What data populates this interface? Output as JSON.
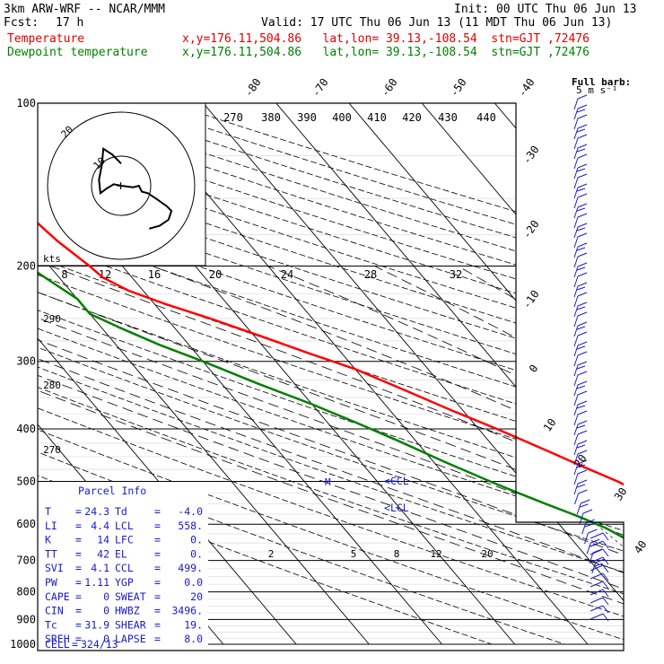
{
  "header": {
    "model": "3km ARW-WRF -- NCAR/MMM",
    "init": "Init: 00 UTC Thu 06 Jun 13",
    "fcst_label": "Fcst:",
    "fcst_value": "17 h",
    "valid": "Valid: 17 UTC Thu 06 Jun 13 (11 MDT Thu 06 Jun 13)",
    "temperature_label": "Temperature",
    "dewpoint_label": "Dewpoint temperature",
    "temperature_loc": "x,y=176.11,504.86   lat,lon= 39.13,-108.54  stn=GJT ,72476",
    "dewpoint_loc": "x,y=176.11,504.86   lat,lon= 39.13,-108.54  stn=GJT ,72476"
  },
  "colors": {
    "temperature": "#ff0000",
    "dewpoint": "#008000",
    "hodograph": "#000000",
    "wind_barbs": "#1a1acc",
    "parcel_info": "#1a1acc",
    "grid": "#000000"
  },
  "chart_data": {
    "type": "line",
    "title": "",
    "xlabel": "",
    "ylabel": "",
    "pressure_levels": [
      "100",
      "200",
      "300",
      "400",
      "500",
      "600",
      "700",
      "800",
      "900",
      "1000"
    ],
    "isotherm_labels": [
      "-80",
      "-70",
      "-60",
      "-50",
      "-40",
      "-30",
      "-20",
      "-10",
      "0",
      "10",
      "20",
      "30",
      "40"
    ],
    "theta_labels": [
      "270",
      "380",
      "390",
      "400",
      "410",
      "420",
      "430",
      "440"
    ],
    "dry_adiabat_labels": [
      "290",
      "280",
      "270"
    ],
    "wind_scale_labels": [
      "8",
      "12",
      "16",
      "20",
      "24",
      "28",
      "32"
    ],
    "wind_scale_unit": "kts",
    "mixing_ratio_labels": [
      "2",
      "5",
      "8",
      "12",
      "20"
    ],
    "barb_legend_line1": "Full barb:",
    "barb_legend_line2": "5 m s⁻¹",
    "markers": {
      "ccl": "CCL",
      "lcl": "LCL"
    },
    "series": [
      {
        "name": "Temperature",
        "color": "#ff0000",
        "points": [
          [
            850,
            24.3
          ],
          [
            830,
            21.5
          ],
          [
            800,
            19.0
          ],
          [
            770,
            16.0
          ],
          [
            740,
            13.5
          ],
          [
            700,
            10.0
          ],
          [
            670,
            7.0
          ],
          [
            640,
            4.5
          ],
          [
            600,
            0.5
          ],
          [
            560,
            -2.5
          ],
          [
            520,
            -5.5
          ],
          [
            500,
            -7.0
          ],
          [
            470,
            -10.0
          ],
          [
            440,
            -13.0
          ],
          [
            400,
            -17.5
          ],
          [
            370,
            -21.5
          ],
          [
            340,
            -25.5
          ],
          [
            310,
            -30.0
          ],
          [
            290,
            -34.5
          ],
          [
            270,
            -39.0
          ],
          [
            250,
            -44.0
          ],
          [
            235,
            -48.5
          ],
          [
            222,
            -52.0
          ],
          [
            210,
            -54.0
          ],
          [
            200,
            -54.5
          ],
          [
            180,
            -56.0
          ],
          [
            160,
            -57.0
          ],
          [
            140,
            -58.0
          ],
          [
            125,
            -59.0
          ],
          [
            112,
            -60.5
          ],
          [
            100,
            -61.0
          ]
        ]
      },
      {
        "name": "Dewpoint temperature",
        "color": "#008000",
        "points": [
          [
            850,
            -4.0
          ],
          [
            820,
            -5.0
          ],
          [
            790,
            -6.5
          ],
          [
            760,
            -8.0
          ],
          [
            730,
            -9.0
          ],
          [
            700,
            -10.5
          ],
          [
            670,
            -11.5
          ],
          [
            640,
            -12.5
          ],
          [
            610,
            -14.0
          ],
          [
            580,
            -16.5
          ],
          [
            550,
            -19.5
          ],
          [
            520,
            -22.5
          ],
          [
            500,
            -24.5
          ],
          [
            460,
            -28.5
          ],
          [
            420,
            -32.5
          ],
          [
            390,
            -36.0
          ],
          [
            360,
            -40.0
          ],
          [
            330,
            -45.0
          ],
          [
            300,
            -50.0
          ],
          [
            280,
            -54.0
          ],
          [
            260,
            -57.5
          ],
          [
            245,
            -60.0
          ],
          [
            230,
            -60.0
          ],
          [
            200,
            -63.0
          ],
          [
            180,
            -67.0
          ],
          [
            160,
            -71.0
          ],
          [
            140,
            -75.0
          ],
          [
            125,
            -77.0
          ],
          [
            112,
            -79.0
          ],
          [
            100,
            -82.0
          ]
        ]
      }
    ],
    "hodograph": {
      "ring_labels": [
        "20",
        "10"
      ],
      "center_mark": "+",
      "trace": [
        [
          0.0,
          7.5
        ],
        [
          -3.0,
          10.5
        ],
        [
          -6.0,
          12.5
        ],
        [
          -6.5,
          7.0
        ],
        [
          -7.5,
          2.0
        ],
        [
          -7.0,
          -2.5
        ],
        [
          -5.0,
          -1.0
        ],
        [
          -2.5,
          0.5
        ],
        [
          0.0,
          0.0
        ],
        [
          4.0,
          -0.5
        ],
        [
          6.0,
          0.0
        ],
        [
          7.0,
          -2.0
        ],
        [
          9.0,
          -2.5
        ],
        [
          12.0,
          -4.5
        ],
        [
          15.5,
          -7.0
        ],
        [
          17.0,
          -8.5
        ],
        [
          16.0,
          -11.5
        ],
        [
          13.0,
          -13.5
        ],
        [
          9.5,
          -14.5
        ]
      ]
    }
  },
  "parcel_info": {
    "title": "Parcel Info",
    "rows": [
      {
        "l1": "T",
        "v1": "24.3",
        "l2": "Td",
        "v2": "-4.0"
      },
      {
        "l1": "LI",
        "v1": "4.4",
        "l2": "LCL",
        "v2": "558."
      },
      {
        "l1": "K",
        "v1": "14",
        "l2": "LFC",
        "v2": "0."
      },
      {
        "l1": "TT",
        "v1": "42",
        "l2": "EL",
        "v2": "0."
      },
      {
        "l1": "SVI",
        "v1": "4.1",
        "l2": "CCL",
        "v2": "499."
      },
      {
        "l1": "PW",
        "v1": "1.11",
        "l2": "YGP",
        "v2": "0.0"
      },
      {
        "l1": "CAPE",
        "v1": "0",
        "l2": "SWEAT",
        "v2": "20"
      },
      {
        "l1": "CIN",
        "v1": "0",
        "l2": "HWBZ",
        "v2": "3496."
      },
      {
        "l1": "Tc",
        "v1": "31.9",
        "l2": "SHEAR",
        "v2": "19."
      },
      {
        "l1": "SREH",
        "v1": "0",
        "l2": "LAPSE",
        "v2": "8.0"
      }
    ],
    "cell_label": "CELL",
    "cell_value": "324/13"
  }
}
